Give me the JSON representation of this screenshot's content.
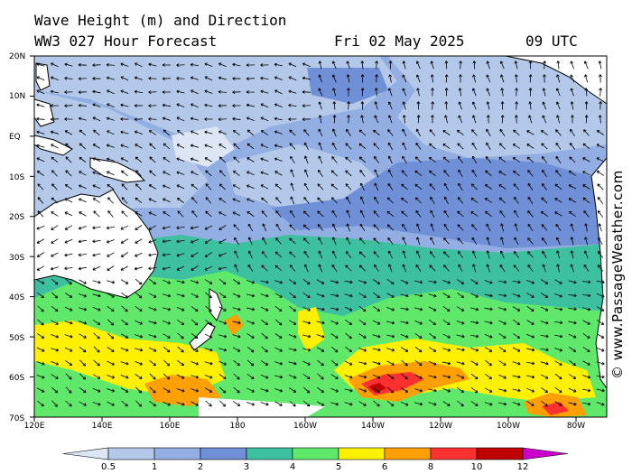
{
  "header": {
    "title_line1": "Wave Height (m) and Direction",
    "title_line2": "WW3 027 Hour Forecast",
    "date": "Fri 02 May 2025",
    "time": "09 UTC"
  },
  "credit": "© www.PassageWeather.com",
  "map": {
    "lat_labels": [
      "20N",
      "10N",
      "EQ",
      "10S",
      "20S",
      "30S",
      "40S",
      "50S",
      "60S",
      "70S"
    ],
    "lon_labels": [
      "120E",
      "140E",
      "160E",
      "180",
      "160W",
      "140W",
      "120W",
      "100W",
      "80W"
    ],
    "legend": {
      "values": [
        "0.5",
        "1",
        "2",
        "3",
        "4",
        "5",
        "6",
        "8",
        "10",
        "12"
      ],
      "colors": [
        "#dde6f5",
        "#b4c8ea",
        "#93aee2",
        "#6f8fd6",
        "#3cc0a0",
        "#5fe86a",
        "#fff000",
        "#ffa000",
        "#ff3030",
        "#c00000",
        "#cc00cc"
      ]
    },
    "land_color": "#ffffff",
    "sea_base_color": "#93aee2"
  }
}
